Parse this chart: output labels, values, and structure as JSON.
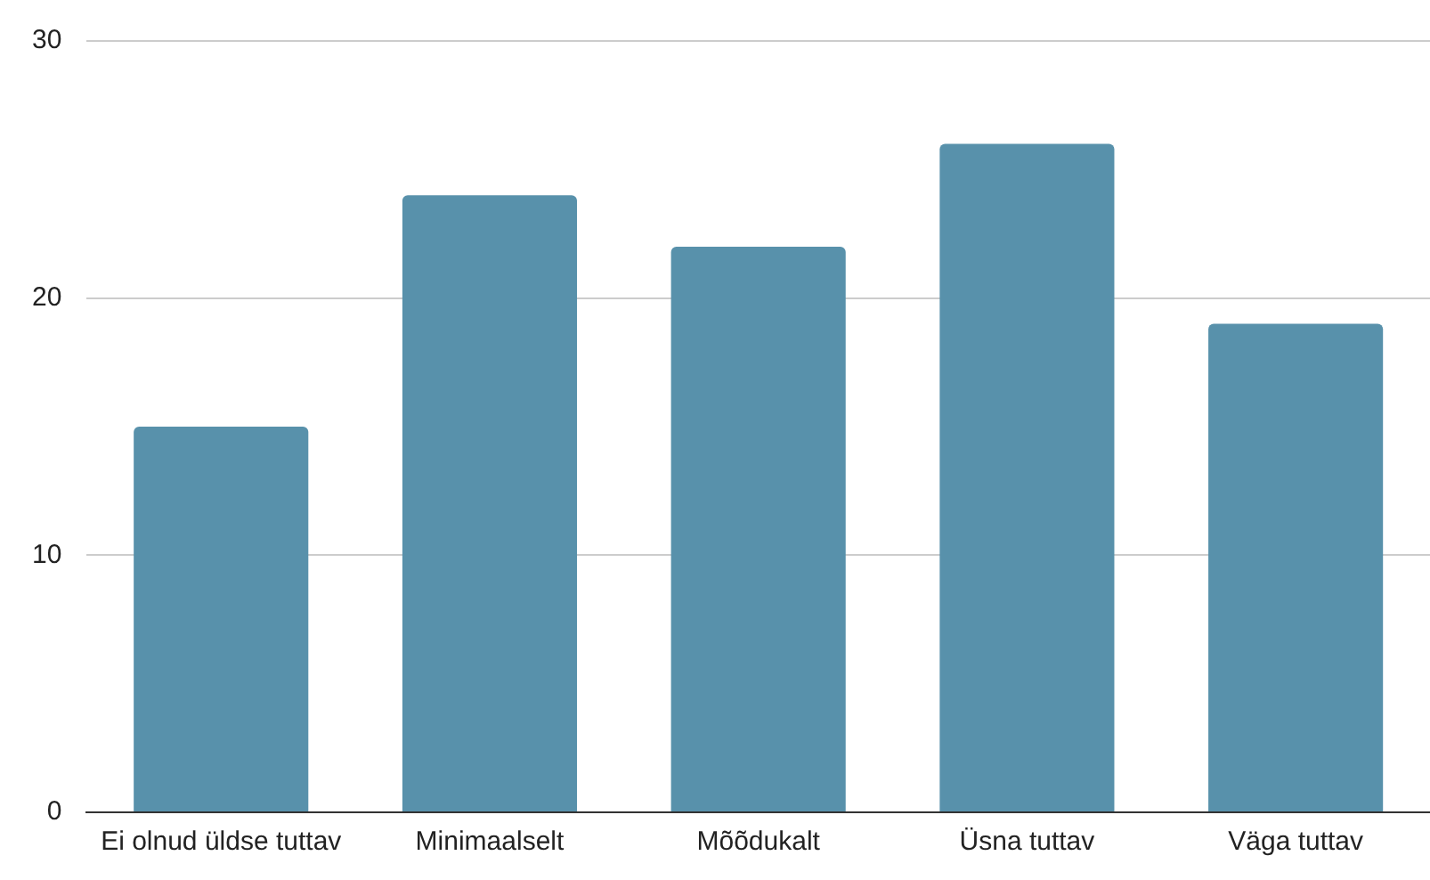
{
  "chart_data": {
    "type": "bar",
    "categories": [
      "Ei olnud üldse tuttav",
      "Minimaalselt",
      "Mõõdukalt",
      "Üsna tuttav",
      "Väga tuttav"
    ],
    "values": [
      15,
      24,
      22,
      26,
      19
    ],
    "color": "#5891ab",
    "ylim": [
      0,
      30
    ],
    "yticks": [
      0,
      10,
      20,
      30
    ],
    "grid": "y",
    "legend": false
  }
}
